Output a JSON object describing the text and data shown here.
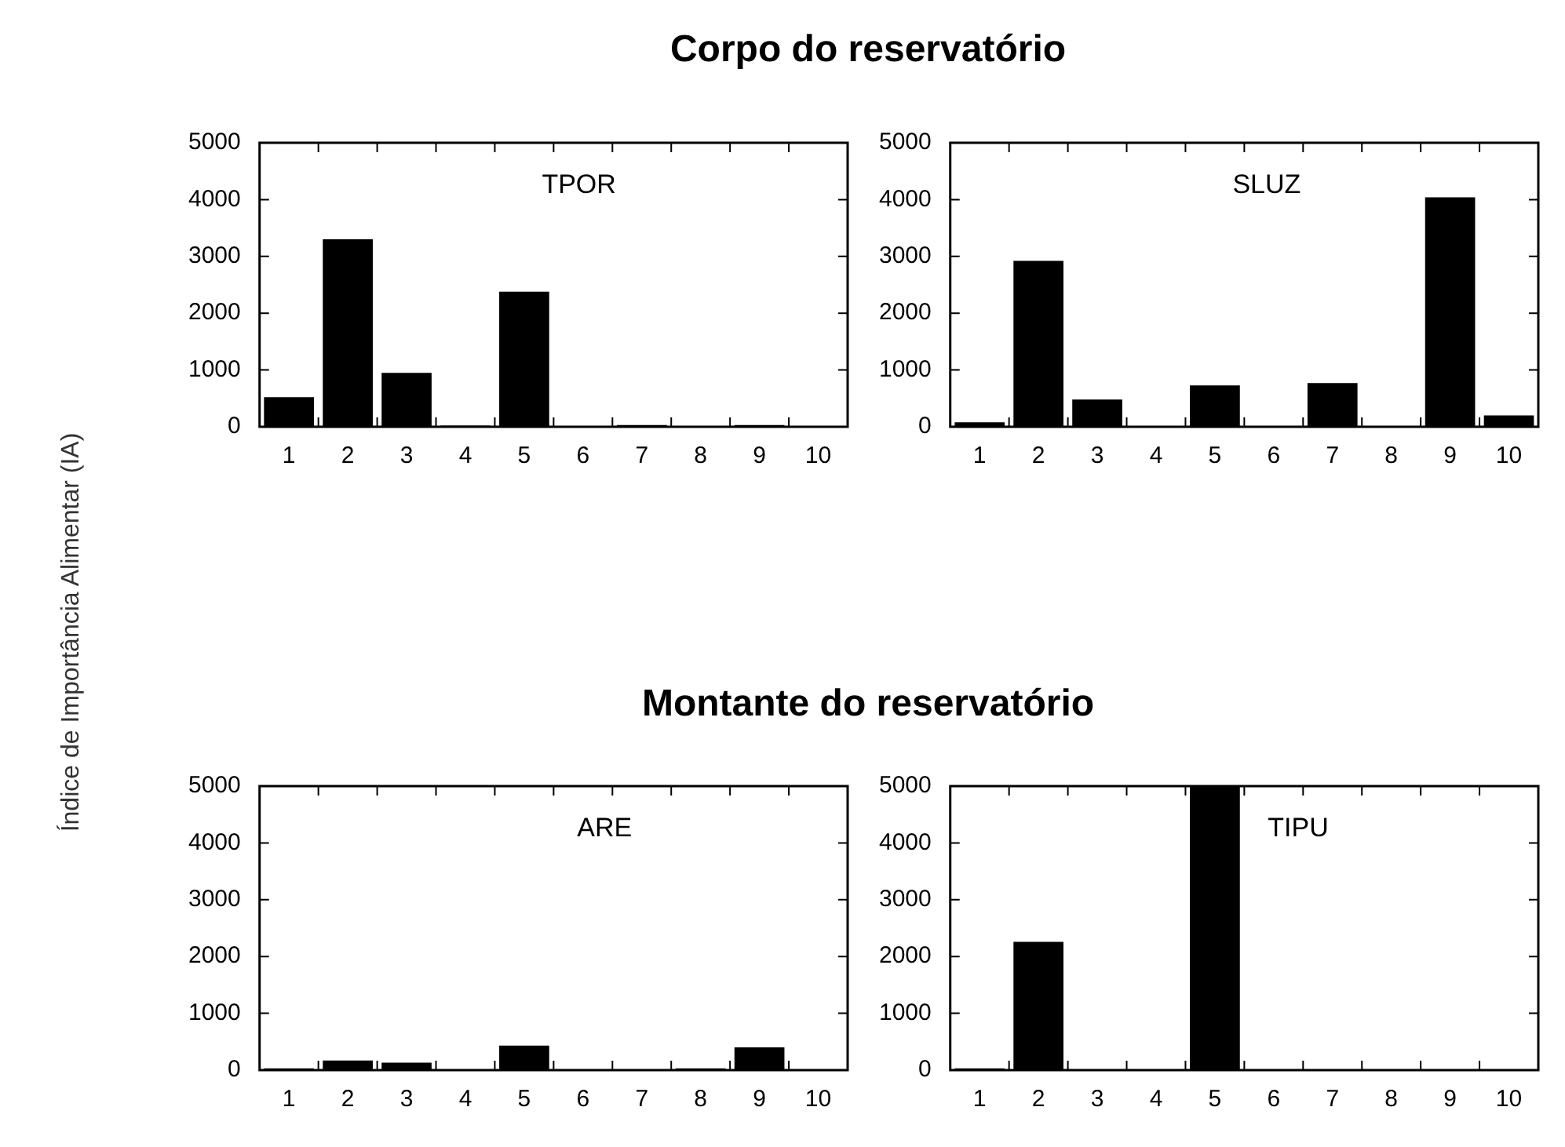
{
  "chart_data": [
    {
      "type": "bar",
      "title": "Corpo do reservatório",
      "ylabel": "Índice de Importância Alimentar (IA)",
      "annotations": [
        "TPOR"
      ],
      "categories": [
        "1",
        "2",
        "3",
        "4",
        "5",
        "6",
        "7",
        "8",
        "9",
        "10"
      ],
      "values": [
        520,
        3300,
        950,
        20,
        2380,
        0,
        30,
        0,
        30,
        0
      ],
      "color": "#000000",
      "ylim": [
        0,
        5000
      ],
      "yticks": [
        0,
        1000,
        2000,
        3000,
        4000,
        5000
      ],
      "grid": false
    },
    {
      "type": "bar",
      "annotations": [
        "SLUZ"
      ],
      "categories": [
        "1",
        "2",
        "3",
        "4",
        "5",
        "6",
        "7",
        "8",
        "9",
        "10"
      ],
      "values": [
        80,
        2920,
        480,
        0,
        730,
        0,
        770,
        0,
        4040,
        200
      ],
      "color": "#000000",
      "ylim": [
        0,
        5000
      ],
      "yticks": [
        0,
        1000,
        2000,
        3000,
        4000,
        5000
      ],
      "grid": false
    },
    {
      "type": "bar",
      "title": "Montante do reservatório",
      "annotations": [
        "ARE"
      ],
      "categories": [
        "1",
        "2",
        "3",
        "4",
        "5",
        "6",
        "7",
        "8",
        "9",
        "10"
      ],
      "values": [
        30,
        170,
        130,
        0,
        430,
        0,
        0,
        30,
        400,
        10
      ],
      "color": "#000000",
      "ylim": [
        0,
        5000
      ],
      "yticks": [
        0,
        1000,
        2000,
        3000,
        4000,
        5000
      ],
      "grid": false
    },
    {
      "type": "bar",
      "annotations": [
        "TIPU"
      ],
      "categories": [
        "1",
        "2",
        "3",
        "4",
        "5",
        "6",
        "7",
        "8",
        "9",
        "10"
      ],
      "values": [
        30,
        2260,
        0,
        0,
        5000,
        0,
        0,
        0,
        0,
        0
      ],
      "color": "#000000",
      "ylim": [
        0,
        5000
      ],
      "yticks": [
        0,
        1000,
        2000,
        3000,
        4000,
        5000
      ],
      "grid": false
    }
  ]
}
